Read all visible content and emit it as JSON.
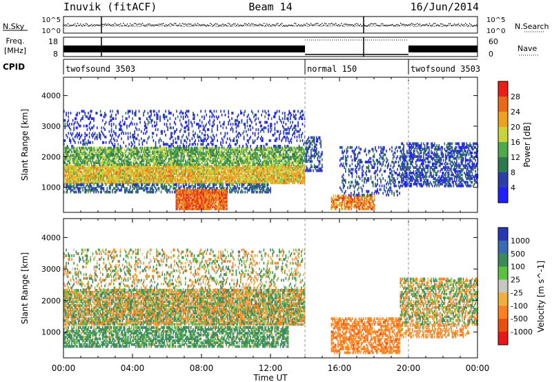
{
  "header": {
    "station": "Inuvik (fitACF)",
    "beam": "Beam 14",
    "date": "16/Jun/2014"
  },
  "strip_labels": {
    "nsky": "N.Sky",
    "nsearch": "N.Search",
    "freq_line1": "Freq.",
    "freq_line2": "[MHz]",
    "nave": "Nave",
    "cpid": "CPID",
    "noise_tick_hi": "10^5",
    "noise_tick_lo": "10^0",
    "freq_tick_hi": "18",
    "freq_tick_lo": "8",
    "nave_tick_hi": "60",
    "nave_tick_lo": "0"
  },
  "cpid_segments": [
    {
      "label": "twofsound 3503",
      "start_h": 0,
      "end_h": 14.0
    },
    {
      "label": "normal 150",
      "start_h": 14.0,
      "end_h": 20.0
    },
    {
      "label": "twofsound 3503",
      "start_h": 20.0,
      "end_h": 24.0
    }
  ],
  "colors": {
    "power": [
      "#1f1fff",
      "#2a3fa8",
      "#2e7a50",
      "#4fa84a",
      "#c8d43c",
      "#f0a020",
      "#e86a18",
      "#e82018"
    ],
    "velocity": [
      "#2838b0",
      "#3a6ab0",
      "#3a8a5a",
      "#5cc040",
      "#c8c8c0",
      "#f0b040",
      "#ff8020",
      "#e85010",
      "#e81818"
    ],
    "ground": "#a8a8a8"
  },
  "chart_data": [
    {
      "type": "heatmap",
      "title": "Power",
      "xlabel": "",
      "ylabel": "Slant Range [km]",
      "colorbar_label": "Power [dB]",
      "colorbar_ticks": [
        "4",
        "8",
        "12",
        "16",
        "20",
        "24",
        "28"
      ],
      "x_ticks": [
        "00:00",
        "04:00",
        "08:00",
        "12:00",
        "16:00",
        "20:00",
        "00:00"
      ],
      "y_ticks": [
        "1000",
        "2000",
        "3000",
        "4000"
      ],
      "xlim_hours": [
        0,
        24
      ],
      "ylim_km": [
        180,
        4600
      ],
      "bands": [
        {
          "t0": 0,
          "t1": 14,
          "r0": 1100,
          "r1": 1700,
          "power_db": 22,
          "density": 0.9
        },
        {
          "t0": 0,
          "t1": 14,
          "r0": 1700,
          "r1": 2300,
          "power_db": 16,
          "density": 0.75
        },
        {
          "t0": 0,
          "t1": 12,
          "r0": 800,
          "r1": 1100,
          "power_db": 10,
          "density": 0.55
        },
        {
          "t0": 6.5,
          "t1": 9.5,
          "r0": 250,
          "r1": 900,
          "power_db": 28,
          "density": 0.95
        },
        {
          "t0": 0,
          "t1": 14,
          "r0": 2300,
          "r1": 3500,
          "power_db": 6,
          "density": 0.2
        },
        {
          "t0": 15.5,
          "t1": 18,
          "r0": 250,
          "r1": 700,
          "power_db": 26,
          "density": 0.7
        },
        {
          "t0": 19.5,
          "t1": 24,
          "r0": 1000,
          "r1": 2400,
          "power_db": 8,
          "density": 0.55
        },
        {
          "t0": 14,
          "t1": 15,
          "r0": 1500,
          "r1": 2600,
          "power_db": 8,
          "density": 0.45
        },
        {
          "t0": 16,
          "t1": 19.5,
          "r0": 700,
          "r1": 2300,
          "power_db": 8,
          "density": 0.25
        }
      ]
    },
    {
      "type": "heatmap",
      "title": "Velocity",
      "xlabel": "Time UT",
      "ylabel": "Slant Range [km]",
      "colorbar_label": "Velocity [m s^-1]",
      "colorbar_ticks": [
        "1000",
        "500",
        "100",
        "25",
        "-25",
        "-100",
        "-500",
        "-1000"
      ],
      "x_ticks": [
        "00:00",
        "04:00",
        "08:00",
        "12:00",
        "16:00",
        "20:00",
        "00:00"
      ],
      "y_ticks": [
        "1000",
        "2000",
        "3000",
        "4000"
      ],
      "xlim_hours": [
        0,
        24
      ],
      "ylim_km": [
        180,
        4600
      ],
      "bands": [
        {
          "t0": 0,
          "t1": 14,
          "r0": 1200,
          "r1": 2300,
          "velocity": 0,
          "density": 0.85
        },
        {
          "t0": 0,
          "t1": 13,
          "r0": 500,
          "r1": 1150,
          "velocity": 200,
          "density": 0.7
        },
        {
          "t0": 0,
          "t1": 14,
          "r0": 2300,
          "r1": 3600,
          "velocity": 0,
          "density": 0.25
        },
        {
          "t0": 15.5,
          "t1": 19.5,
          "r0": 300,
          "r1": 1400,
          "velocity": -300,
          "density": 0.6
        },
        {
          "t0": 19.5,
          "t1": 24,
          "r0": 1200,
          "r1": 2700,
          "velocity": 0,
          "density": 0.6
        },
        {
          "t0": 19.5,
          "t1": 23.5,
          "r0": 800,
          "r1": 1200,
          "velocity": -200,
          "density": 0.5
        }
      ]
    }
  ]
}
